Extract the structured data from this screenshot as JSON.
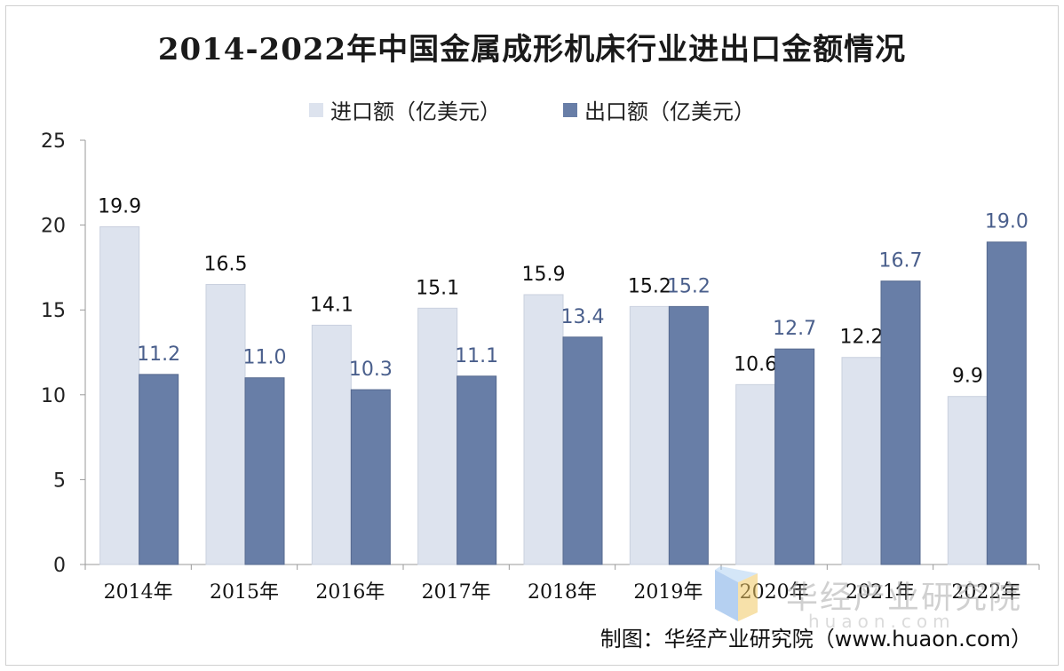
{
  "chart_data": {
    "type": "bar",
    "title": "2014-2022年中国金属成形机床行业进出口金额情况",
    "categories": [
      "2014年",
      "2015年",
      "2016年",
      "2017年",
      "2018年",
      "2019年",
      "2020年",
      "2021年",
      "2022年"
    ],
    "series": [
      {
        "name": "进口额（亿美元）",
        "values": [
          19.9,
          16.5,
          14.1,
          15.1,
          15.9,
          15.2,
          10.6,
          12.2,
          9.9
        ],
        "color": "#dde3ee",
        "label_color": "#111111"
      },
      {
        "name": "出口额（亿美元）",
        "values": [
          11.2,
          11.0,
          10.3,
          11.1,
          13.4,
          15.2,
          12.7,
          16.7,
          19.0
        ],
        "color": "#687ea7",
        "label_color": "#4a5f8c"
      }
    ],
    "ylim": [
      0,
      25
    ],
    "yticks": [
      0,
      5,
      10,
      15,
      20,
      25
    ],
    "xlabel": "",
    "ylabel": "",
    "grid": false,
    "legend": "top-center"
  },
  "source": "制图：华经产业研究院（www.huaon.com）",
  "watermark": {
    "text": "华经产业研究院",
    "sub": "huaon.com"
  }
}
